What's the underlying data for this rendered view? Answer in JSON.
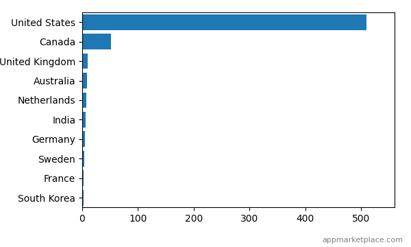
{
  "chart_data": {
    "type": "bar",
    "orientation": "horizontal",
    "categories": [
      "United States",
      "Canada",
      "United Kingdom",
      "Australia",
      "Netherlands",
      "India",
      "Germany",
      "Sweden",
      "France",
      "South Korea"
    ],
    "values": [
      510,
      52,
      10,
      8,
      7,
      6,
      5,
      4,
      3,
      2
    ],
    "xlim": [
      0,
      560
    ],
    "xticks": [
      0,
      100,
      200,
      300,
      400,
      500
    ],
    "grid": false,
    "annotations": [
      "appmarketplace.com"
    ]
  }
}
